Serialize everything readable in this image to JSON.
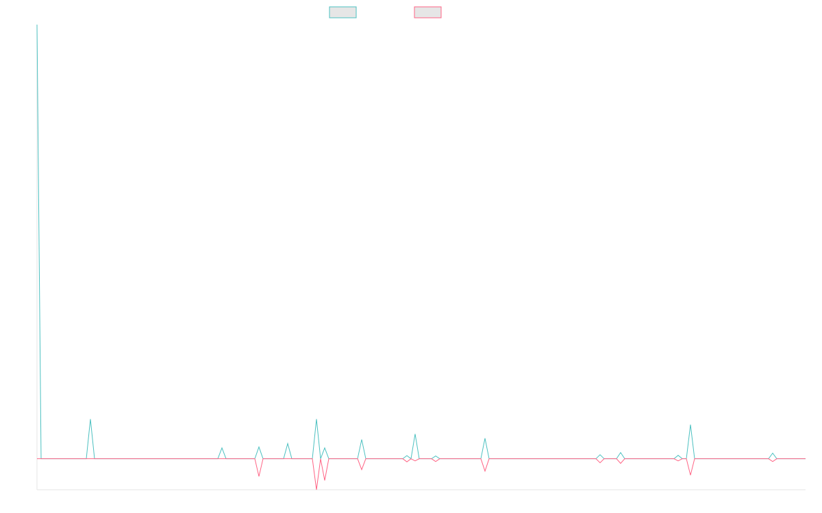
{
  "chart_data": {
    "type": "line",
    "x": [
      0,
      1,
      12,
      13,
      14,
      44,
      45,
      46,
      53,
      54,
      55,
      60,
      61,
      62,
      67,
      68,
      69,
      70,
      71,
      78,
      79,
      80,
      89,
      90,
      91,
      92,
      93,
      96,
      97,
      98,
      108,
      109,
      110,
      136,
      137,
      138,
      141,
      142,
      143,
      155,
      156,
      157,
      158,
      159,
      160,
      178,
      179,
      180,
      187
    ],
    "series": [
      {
        "color": "#4bc0c0",
        "values": [
          14,
          0,
          0,
          1.28,
          0,
          0,
          0.35,
          0,
          0,
          0.38,
          0,
          0,
          0.49,
          0,
          0,
          1.28,
          0,
          0.35,
          0,
          0,
          0.62,
          0,
          0,
          0.1,
          0,
          0.8,
          0,
          0,
          0.09,
          0,
          0,
          0.66,
          0,
          0,
          0.13,
          0,
          0,
          0.2,
          0,
          0,
          0.11,
          0,
          0,
          1.1,
          0,
          0,
          0.18,
          0,
          0
        ]
      },
      {
        "color": "#ff6384",
        "values": [
          0,
          0,
          0,
          0,
          0,
          0,
          0,
          0,
          0,
          -0.57,
          0,
          0,
          0,
          0,
          0,
          -1,
          0,
          -0.7,
          0,
          0,
          -0.35,
          0,
          0,
          -0.1,
          0,
          -0.07,
          0,
          0,
          -0.09,
          0,
          0,
          -0.4,
          0,
          0,
          -0.13,
          0,
          0,
          -0.15,
          0,
          0,
          -0.07,
          0,
          0,
          -0.53,
          0,
          0,
          -0.09,
          0,
          0
        ]
      }
    ],
    "xlim": [
      0,
      187
    ],
    "ylim": [
      -1,
      14
    ]
  }
}
